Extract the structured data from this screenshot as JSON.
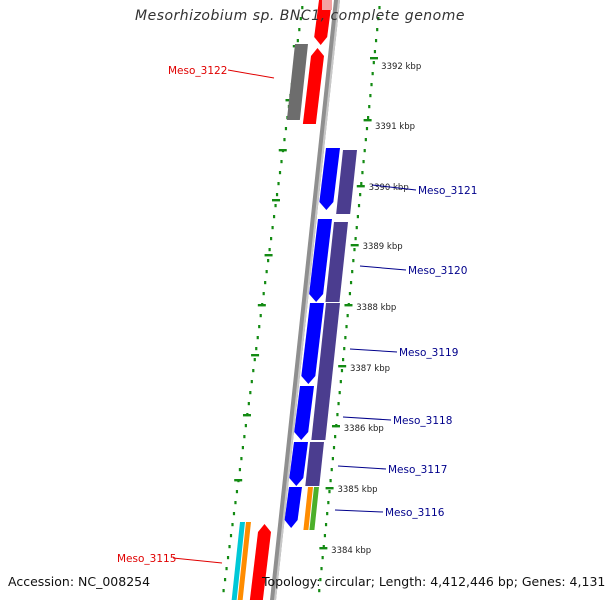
{
  "title": "Mesorhizobium sp. BNC1, complete genome",
  "accession": "Accession: NC_008254",
  "topology": "Topology: circular; Length: 4,412,446 bp; Genes: 4,131",
  "colors": {
    "backbone": "#8f8f8f",
    "tick": "#138b13",
    "plus_label": "#e00000",
    "minus_label": "#00008b",
    "cds_forward": "#ff0000",
    "cds_reverse": "#0000ff",
    "cog_purple": "#4b3d8f",
    "cog_gray": "#6d6d6d",
    "cog_cyan": "#00c8d7",
    "cog_orange": "#ff8c00",
    "cog_green": "#4caf2a"
  },
  "scale_labels": [
    {
      "text": "3392 kbp"
    },
    {
      "text": "3391 kbp"
    },
    {
      "text": "3390 kbp"
    },
    {
      "text": "3389 kbp"
    },
    {
      "text": "3388 kbp"
    },
    {
      "text": "3387 kbp"
    },
    {
      "text": "3386 kbp"
    },
    {
      "text": "3385 kbp"
    },
    {
      "text": "3384 kbp"
    }
  ],
  "gene_labels": [
    {
      "text": "Meso_3122",
      "strand": "plus"
    },
    {
      "text": "Meso_3121",
      "strand": "minus"
    },
    {
      "text": "Meso_3120",
      "strand": "minus"
    },
    {
      "text": "Meso_3119",
      "strand": "minus"
    },
    {
      "text": "Meso_3118",
      "strand": "minus"
    },
    {
      "text": "Meso_3117",
      "strand": "minus"
    },
    {
      "text": "Meso_3116",
      "strand": "minus"
    },
    {
      "text": "Meso_3115",
      "strand": "plus"
    }
  ]
}
